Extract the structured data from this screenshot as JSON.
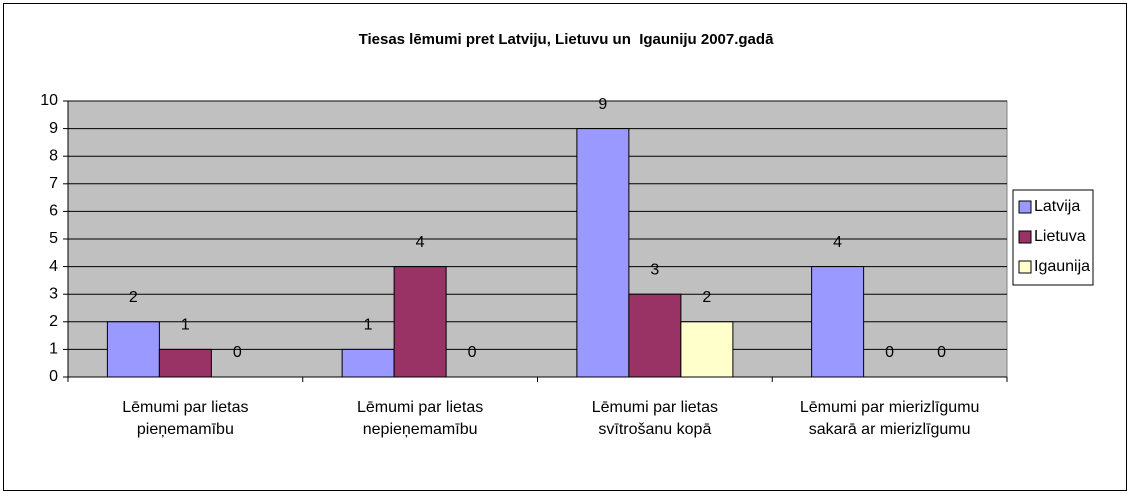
{
  "chart_data": {
    "type": "bar",
    "title": "Tiesas lēmumi pret Latviju, Lietuvu un  Igauniju 2007.gadā",
    "categories": [
      "Lēmumi par lietas pieņemamību",
      "Lēmumi par lietas nepieņemamību",
      "Lēmumi par lietas svītrošanu kopā",
      "Lēmumi par mierizlīgumu sakarā ar mierizlīgumu"
    ],
    "series": [
      {
        "name": "Latvija",
        "color": "#9999ff",
        "values": [
          2,
          1,
          9,
          4
        ]
      },
      {
        "name": "Lietuva",
        "color": "#993366",
        "values": [
          1,
          4,
          3,
          0
        ]
      },
      {
        "name": "Igaunija",
        "color": "#ffffcc",
        "values": [
          0,
          0,
          2,
          0
        ]
      }
    ],
    "ylim": [
      0,
      10
    ],
    "yticks": [
      0,
      1,
      2,
      3,
      4,
      5,
      6,
      7,
      8,
      9,
      10
    ],
    "grid": true,
    "legend": "right"
  }
}
